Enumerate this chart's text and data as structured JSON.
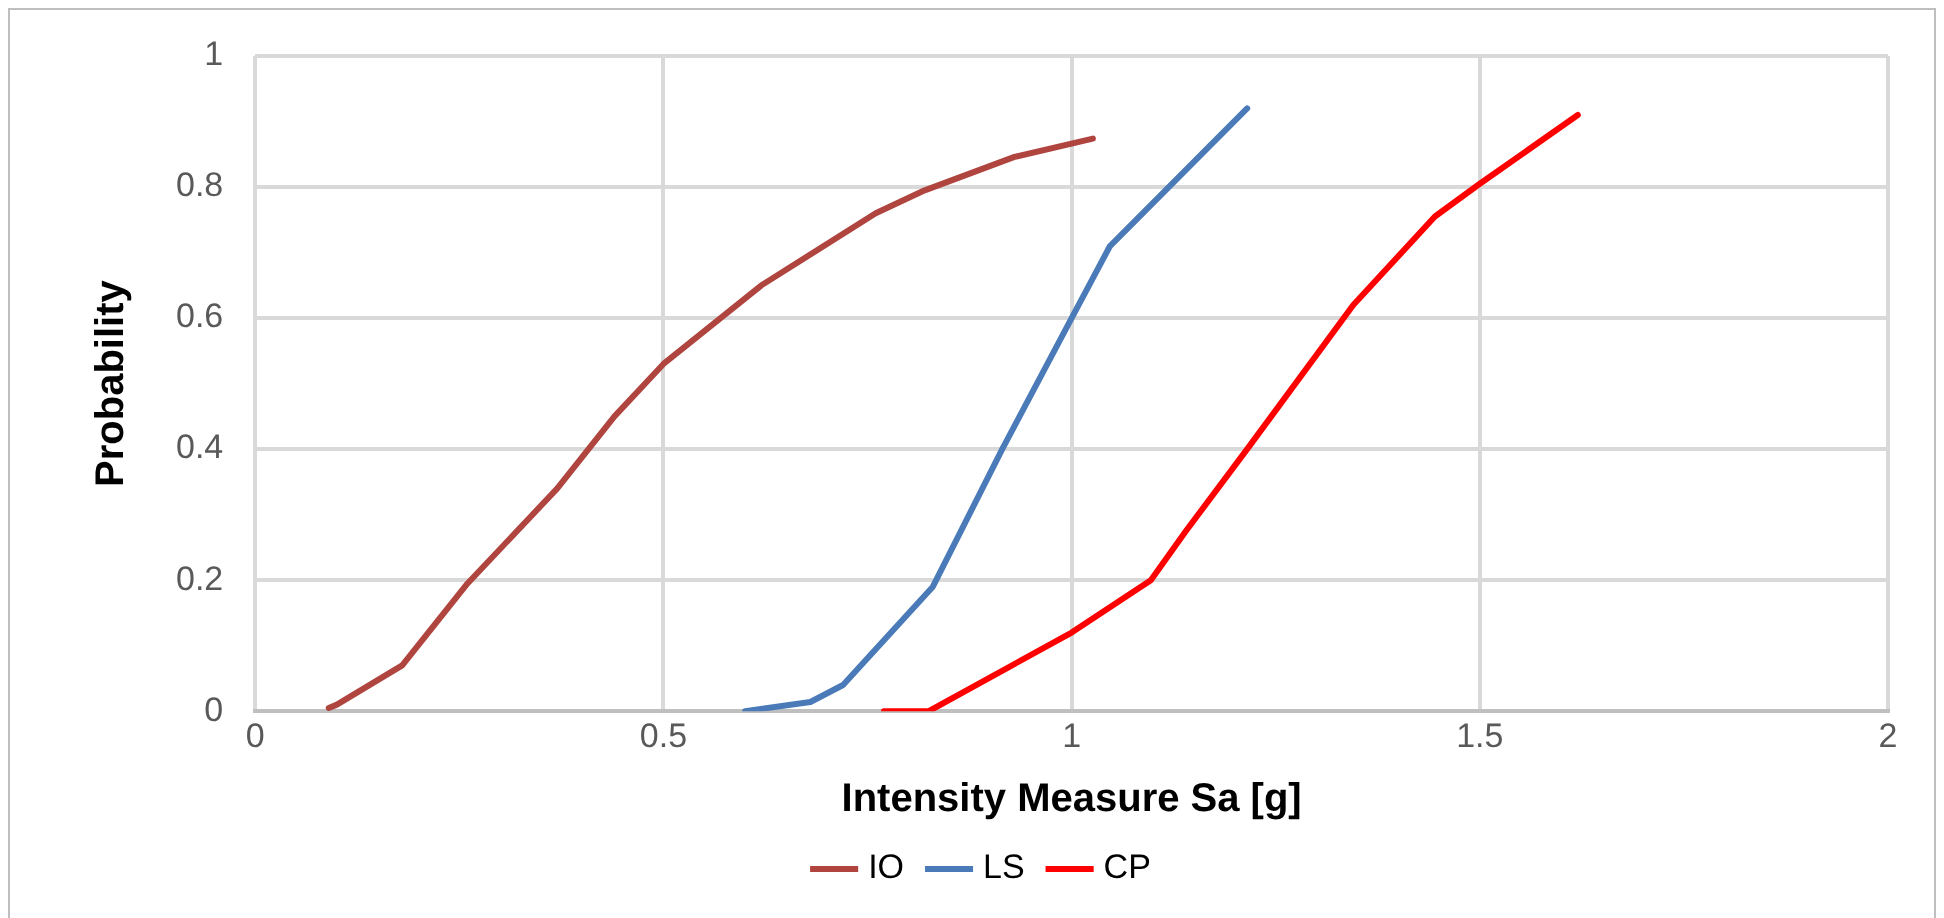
{
  "chart_data": {
    "type": "line",
    "xlabel": "Intensity Measure Sa [g]",
    "ylabel": "Probability",
    "xlim": [
      0,
      2
    ],
    "xticks": [
      0,
      0.5,
      1,
      1.5,
      2
    ],
    "ylim": [
      0,
      1
    ],
    "yticks": [
      0,
      0.2,
      0.4,
      0.6,
      0.8,
      1
    ],
    "grid": true,
    "legend": "bottom",
    "marker": "none",
    "line_style": "solid",
    "series": [
      {
        "name": "IO",
        "color": "#b0443f",
        "x": [
          0.09,
          0.1,
          0.18,
          0.26,
          0.37,
          0.44,
          0.5,
          0.62,
          0.76,
          0.82,
          0.93,
          1.026
        ],
        "values": [
          0.005,
          0.01,
          0.07,
          0.195,
          0.34,
          0.45,
          0.53,
          0.65,
          0.76,
          0.795,
          0.846,
          0.874
        ]
      },
      {
        "name": "LS",
        "color": "#4a7ab8",
        "x": [
          0.6,
          0.68,
          0.72,
          0.83,
          0.915,
          1.0,
          1.047,
          1.215
        ],
        "values": [
          0,
          0.014,
          0.04,
          0.19,
          0.4,
          0.6,
          0.71,
          0.92
        ]
      },
      {
        "name": "CP",
        "color": "#ff0000",
        "x": [
          0.77,
          0.825,
          1.0,
          1.097,
          1.14,
          1.215,
          1.345,
          1.445,
          1.5,
          1.62
        ],
        "values": [
          0,
          0,
          0.12,
          0.2,
          0.275,
          0.4,
          0.62,
          0.755,
          0.805,
          0.91
        ]
      }
    ]
  }
}
